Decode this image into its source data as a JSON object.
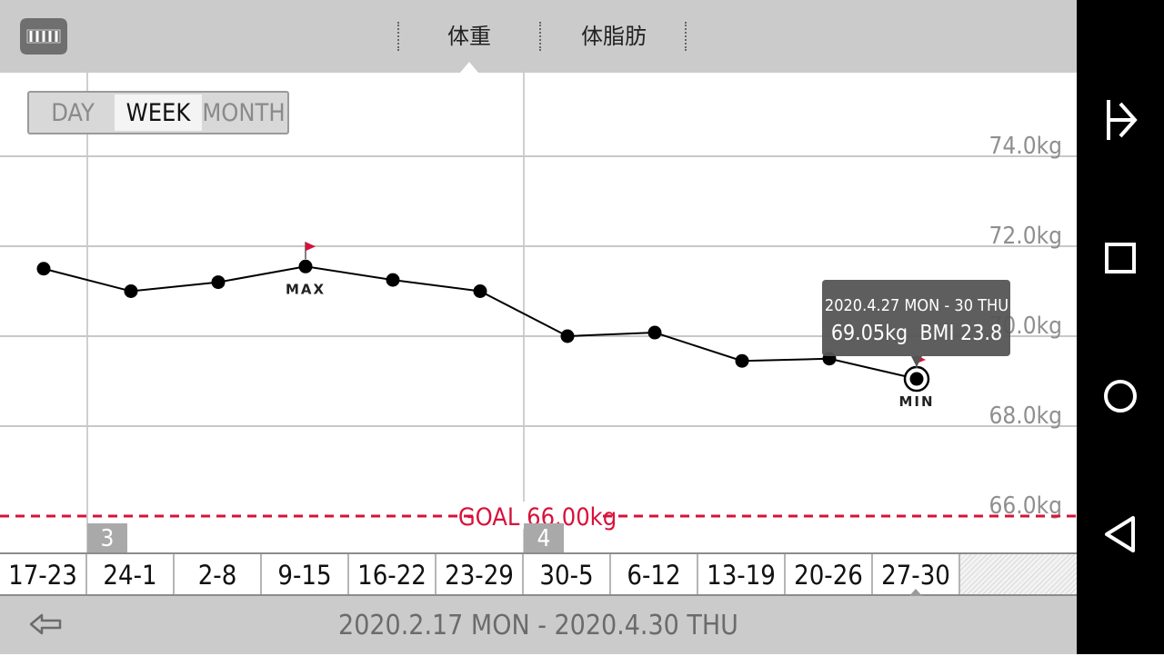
{
  "header": {
    "tabs": [
      {
        "label": "体重",
        "active": true
      },
      {
        "label": "体脂肪",
        "active": false
      }
    ],
    "logo_icon": "scale-icon"
  },
  "period_selector": {
    "options": [
      "DAY",
      "WEEK",
      "MONTH"
    ],
    "selected": "WEEK"
  },
  "chart_data": {
    "type": "line",
    "categories": [
      "17-23",
      "24-1",
      "2-8",
      "9-15",
      "16-22",
      "23-29",
      "30-5",
      "6-12",
      "13-19",
      "20-26",
      "27-30"
    ],
    "values": [
      71.5,
      71.0,
      71.2,
      71.55,
      71.25,
      71.0,
      70.0,
      70.08,
      69.45,
      69.5,
      69.05
    ],
    "ylim": [
      64.0,
      76.0
    ],
    "ytick_labels": [
      {
        "value": 74,
        "label": "74.0kg"
      },
      {
        "value": 72,
        "label": "72.0kg"
      },
      {
        "value": 70,
        "label": "70.0kg"
      },
      {
        "value": 68,
        "label": "68.0kg"
      },
      {
        "value": 66,
        "label": "66.0kg"
      }
    ],
    "goal": {
      "value": 66.0,
      "label": "GOAL 66.00kg",
      "color": "#d8113a"
    },
    "max_label": "MAX",
    "max_index": 3,
    "min_label": "MIN",
    "min_index": 10,
    "selected_index": 10,
    "tooltip": {
      "line1": "2020.4.27 MON - 30 THU",
      "line2": "69.05kg  BMI 23.8"
    },
    "month_markers": [
      {
        "label": "3",
        "index": 1
      },
      {
        "label": "4",
        "index": 6
      }
    ]
  },
  "footer": {
    "date_range": "2020.2.17 MON - 2020.4.30 THU",
    "back_icon": "back-arrow-icon"
  },
  "nav_bar": {
    "icons": [
      "pin-icon",
      "recents-square-icon",
      "home-circle-icon",
      "back-triangle-icon"
    ]
  },
  "colors": {
    "accent": "#d8113a",
    "bar": "#cbcbcb",
    "tooltip": "#555555"
  }
}
